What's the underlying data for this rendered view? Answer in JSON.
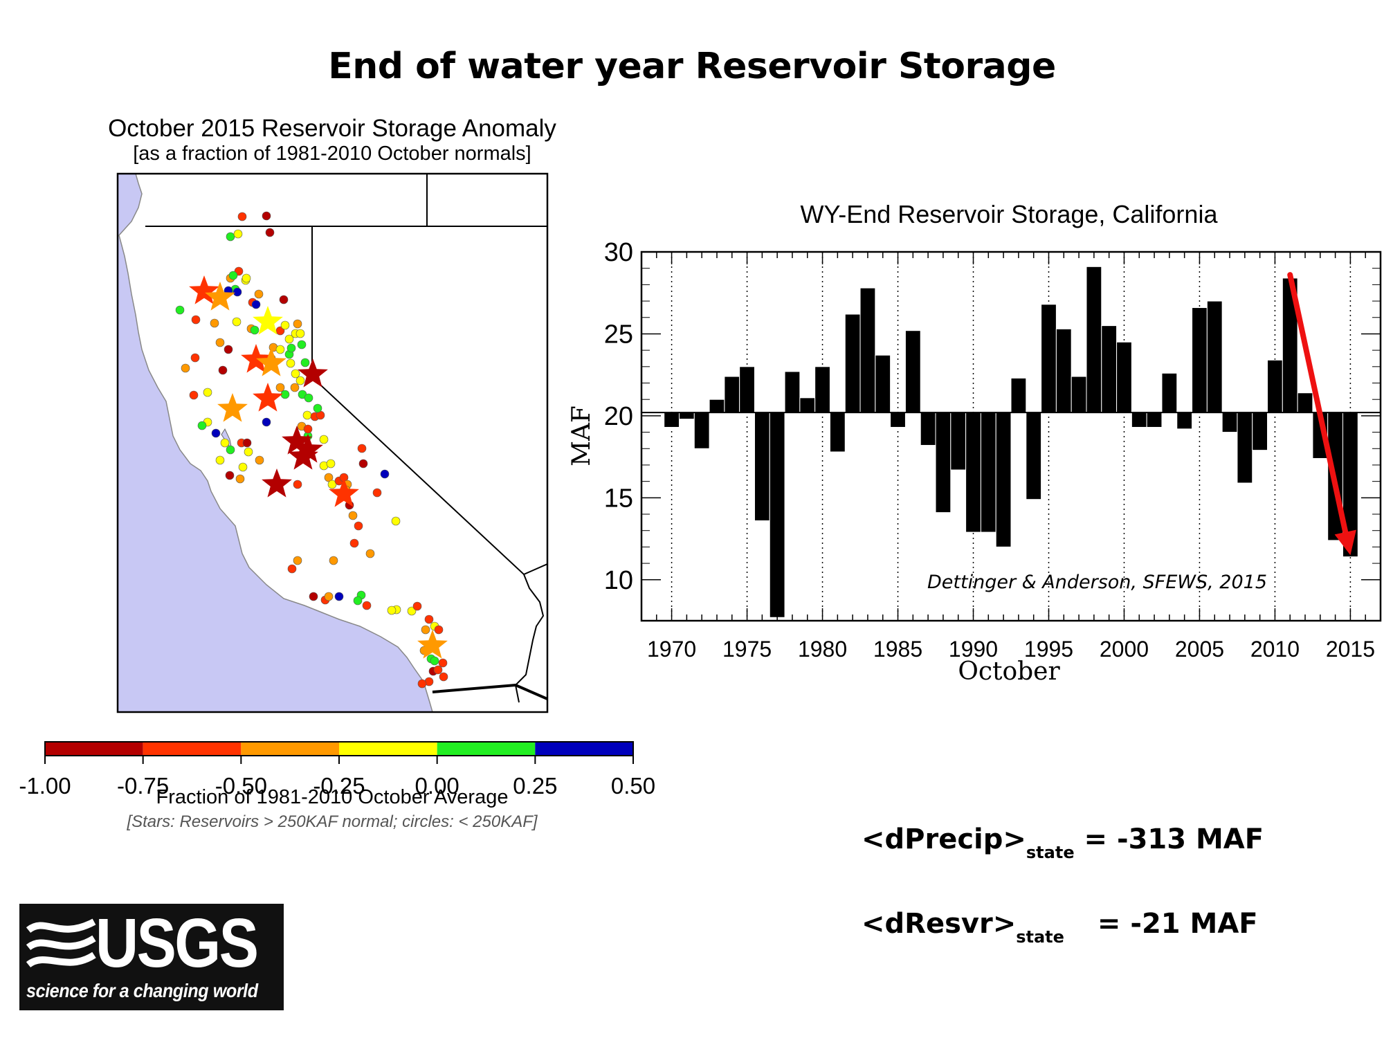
{
  "slide": {
    "title": "End of water year Reservoir Storage"
  },
  "map": {
    "title": "October 2015 Reservoir Storage Anomaly",
    "subtitle": "[as a fraction of 1981-2010 October normals]",
    "ocean_color": "#c8c8f4",
    "colorbar": {
      "colors": [
        "#b30000",
        "#ff3300",
        "#ff9900",
        "#ffff00",
        "#22ee22",
        "#0000bb"
      ],
      "ticks": [
        "-1.00",
        "-0.75",
        "-0.50",
        "-0.25",
        "0.00",
        "0.25",
        "0.50"
      ],
      "label": "Fraction of 1981-2010 October Average",
      "note": "[Stars: Reservoirs > 250KAF normal; circles: < 250KAF]"
    }
  },
  "chart_data": {
    "type": "bar",
    "title": "WY-End Reservoir Storage, California",
    "xlabel": "October",
    "ylabel": "MAF",
    "baseline": 20.2,
    "ylim": [
      7.5,
      30
    ],
    "xlim": [
      1968,
      2017
    ],
    "yticks": [
      10,
      15,
      20,
      25,
      30
    ],
    "xticks": [
      1970,
      1975,
      1980,
      1985,
      1990,
      1995,
      2000,
      2005,
      2010,
      2015
    ],
    "grid": "dotted vertical lines at 5-year ticks",
    "categories": [
      1970,
      1971,
      1972,
      1973,
      1974,
      1975,
      1976,
      1977,
      1978,
      1979,
      1980,
      1981,
      1982,
      1983,
      1984,
      1985,
      1986,
      1987,
      1988,
      1989,
      1990,
      1991,
      1992,
      1993,
      1994,
      1995,
      1996,
      1997,
      1998,
      1999,
      2000,
      2001,
      2002,
      2003,
      2004,
      2005,
      2006,
      2007,
      2008,
      2009,
      2010,
      2011,
      2012,
      2013,
      2014,
      2015
    ],
    "values": [
      19.3,
      19.8,
      18.0,
      21.0,
      22.4,
      23.0,
      13.6,
      7.7,
      22.7,
      21.1,
      23.0,
      17.8,
      26.2,
      27.8,
      23.7,
      19.3,
      25.2,
      18.2,
      14.1,
      16.7,
      12.9,
      12.9,
      12.0,
      22.3,
      14.9,
      26.8,
      25.3,
      22.4,
      29.1,
      25.5,
      24.5,
      19.3,
      19.3,
      22.6,
      19.2,
      26.6,
      27.0,
      19.0,
      15.9,
      17.9,
      23.4,
      28.4,
      21.4,
      17.4,
      12.4,
      11.4
    ],
    "bar_color": "#000000",
    "annotation": {
      "text": "Dettinger & Anderson, SFEWS, 2015",
      "arrow_color": "#ee1111",
      "arrow_from": [
        2011,
        28.6
      ],
      "arrow_to": [
        2015,
        11.5
      ]
    }
  },
  "equations": {
    "eq1": {
      "lhs": "<dPrecip>",
      "sub": "state",
      "rhs": " = -313 MAF"
    },
    "eq2": {
      "lhs": "<dResvr>",
      "sub": "state",
      "rhs": "= -21 MAF"
    }
  },
  "logo": {
    "text": "USGS",
    "tagline": "science for a changing world"
  }
}
